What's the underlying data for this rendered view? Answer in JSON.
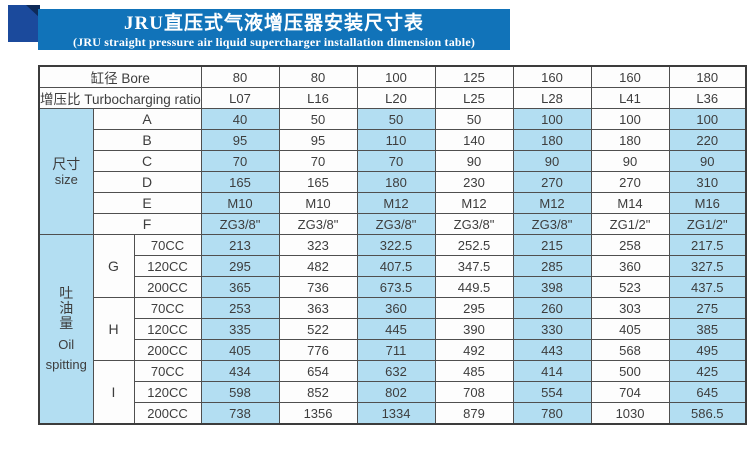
{
  "banner": {
    "title": "JRU直压式气液增压器安装尺寸表",
    "subtitle": "(JRU straight pressure air liquid supercharger installation dimension table)",
    "banner_color": "#1173b9",
    "square_color": "#1b4a9c",
    "fold_color": "#0e2a58"
  },
  "table": {
    "colors": {
      "cell_blue": "#b3def2",
      "cell_white": "#fdfdfd",
      "border": "#4f4f4f",
      "text": "#3d3d3d"
    },
    "header": {
      "bore_label": "缸径 Bore",
      "ratio_label": "增压比 Turbocharging ratio",
      "bore_values": [
        "80",
        "80",
        "100",
        "125",
        "160",
        "160",
        "180"
      ],
      "ratio_values": [
        "L07",
        "L16",
        "L20",
        "L25",
        "L28",
        "L41",
        "L36"
      ]
    },
    "size_section": {
      "label_cn": "尺寸",
      "label_en": "size",
      "rows": [
        {
          "label": "A",
          "values": [
            "40",
            "50",
            "50",
            "50",
            "100",
            "100",
            "100"
          ]
        },
        {
          "label": "B",
          "values": [
            "95",
            "95",
            "110",
            "140",
            "180",
            "180",
            "220"
          ]
        },
        {
          "label": "C",
          "values": [
            "70",
            "70",
            "70",
            "90",
            "90",
            "90",
            "90"
          ]
        },
        {
          "label": "D",
          "values": [
            "165",
            "165",
            "180",
            "230",
            "270",
            "270",
            "310"
          ]
        },
        {
          "label": "E",
          "values": [
            "M10",
            "M10",
            "M12",
            "M12",
            "M12",
            "M14",
            "M16"
          ]
        },
        {
          "label": "F",
          "values": [
            "ZG3/8\"",
            "ZG3/8\"",
            "ZG3/8\"",
            "ZG3/8\"",
            "ZG3/8\"",
            "ZG1/2\"",
            "ZG1/2\""
          ]
        }
      ]
    },
    "oil_section": {
      "label_cn": "吐油量",
      "label_en_line1": "Oil",
      "label_en_line2": "spitting",
      "groups": [
        {
          "letter": "G",
          "rows": [
            {
              "cc": "70CC",
              "values": [
                "213",
                "323",
                "322.5",
                "252.5",
                "215",
                "258",
                "217.5"
              ]
            },
            {
              "cc": "120CC",
              "values": [
                "295",
                "482",
                "407.5",
                "347.5",
                "285",
                "360",
                "327.5"
              ]
            },
            {
              "cc": "200CC",
              "values": [
                "365",
                "736",
                "673.5",
                "449.5",
                "398",
                "523",
                "437.5"
              ]
            }
          ]
        },
        {
          "letter": "H",
          "rows": [
            {
              "cc": "70CC",
              "values": [
                "253",
                "363",
                "360",
                "295",
                "260",
                "303",
                "275"
              ]
            },
            {
              "cc": "120CC",
              "values": [
                "335",
                "522",
                "445",
                "390",
                "330",
                "405",
                "385"
              ]
            },
            {
              "cc": "200CC",
              "values": [
                "405",
                "776",
                "711",
                "492",
                "443",
                "568",
                "495"
              ]
            }
          ]
        },
        {
          "letter": "I",
          "rows": [
            {
              "cc": "70CC",
              "values": [
                "434",
                "654",
                "632",
                "485",
                "414",
                "500",
                "425"
              ]
            },
            {
              "cc": "120CC",
              "values": [
                "598",
                "852",
                "802",
                "708",
                "554",
                "704",
                "645"
              ]
            },
            {
              "cc": "200CC",
              "values": [
                "738",
                "1356",
                "1334",
                "879",
                "780",
                "1030",
                "586.5"
              ]
            }
          ]
        }
      ]
    }
  }
}
